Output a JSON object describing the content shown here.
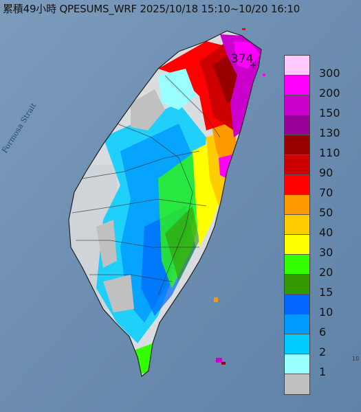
{
  "title": "累積49小時 QPESUMS_WRF 2025/10/18 15:10~10/20 16:10",
  "strait_label": "Formosa Strait",
  "max_value_label": "374",
  "legend": [
    {
      "label": "300",
      "color": "#ffc8ff"
    },
    {
      "label": "200",
      "color": "#ff00ff"
    },
    {
      "label": "150",
      "color": "#cc00cc"
    },
    {
      "label": "130",
      "color": "#990099"
    },
    {
      "label": "110",
      "color": "#990000"
    },
    {
      "label": "90",
      "color": "#cc0000"
    },
    {
      "label": "70",
      "color": "#ff0000"
    },
    {
      "label": "50",
      "color": "#ff9900"
    },
    {
      "label": "40",
      "color": "#ffcc00"
    },
    {
      "label": "30",
      "color": "#ffff00"
    },
    {
      "label": "20",
      "color": "#33ff00"
    },
    {
      "label": "15",
      "color": "#339900"
    },
    {
      "label": "10",
      "color": "#0066ff"
    },
    {
      "label": "6",
      "color": "#0099ff"
    },
    {
      "label": "2",
      "color": "#00ccff"
    },
    {
      "label": "1",
      "color": "#99ffff"
    },
    {
      "label": "",
      "color": "#c0c0c0"
    }
  ],
  "edge_label": "10"
}
